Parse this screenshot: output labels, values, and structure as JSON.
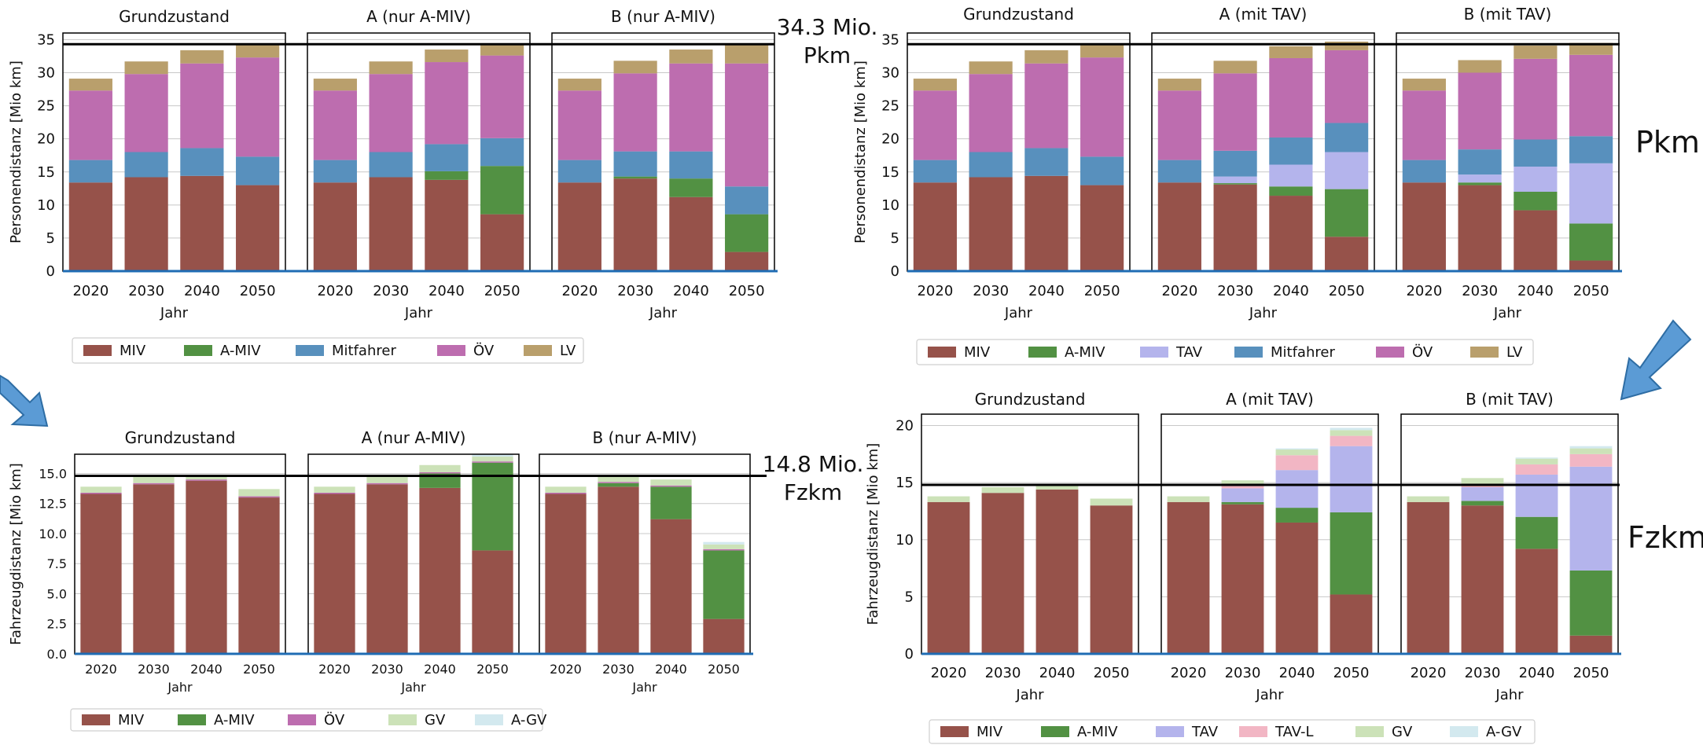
{
  "colors": {
    "MIV": "#96524a",
    "A-MIV": "#529143",
    "Mitfahrer": "#5890bd",
    "ÖV": "#bd6daf",
    "LV": "#b99f6c",
    "TAV": "#b4b4ec",
    "TAV-L": "#f2b6c4",
    "GV": "#cce2b8",
    "A-GV": "#d3e9ef",
    "axis_blue": "#1f6cb4",
    "arrow": "#5b9bd5"
  },
  "annotations": {
    "pkm_ref_line1": "34.3 Mio.",
    "pkm_ref_line2": "Pkm",
    "fzkm_ref_line1": "14.8 Mio.",
    "fzkm_ref_line2": "Fzkm",
    "pkm_side": "Pkm",
    "fzkm_side": "Fzkm"
  },
  "chart_data": [
    {
      "type": "bar",
      "stacked": true,
      "ylabel": "Personendistanz [Mio km]",
      "xlabel": "Jahr",
      "ylim": [
        0,
        36
      ],
      "yticks": [
        0,
        5,
        10,
        15,
        20,
        25,
        30,
        35
      ],
      "reference_line": 34.3,
      "legend": [
        "MIV",
        "A-MIV",
        "Mitfahrer",
        "ÖV",
        "LV"
      ],
      "legend_position": "bottom",
      "categories": [
        "2020",
        "2030",
        "2040",
        "2050"
      ],
      "panels": [
        {
          "title": "Grundzustand",
          "series": [
            {
              "name": "MIV",
              "values": [
                13.4,
                14.2,
                14.4,
                13.0
              ]
            },
            {
              "name": "A-MIV",
              "values": [
                0,
                0,
                0,
                0
              ]
            },
            {
              "name": "Mitfahrer",
              "values": [
                3.4,
                3.8,
                4.2,
                4.3
              ]
            },
            {
              "name": "ÖV",
              "values": [
                10.5,
                11.8,
                12.8,
                15.0
              ]
            },
            {
              "name": "LV",
              "values": [
                1.8,
                1.9,
                2.0,
                2.0
              ]
            }
          ]
        },
        {
          "title": "A (nur A-MIV)",
          "series": [
            {
              "name": "MIV",
              "values": [
                13.4,
                14.2,
                13.8,
                8.6
              ]
            },
            {
              "name": "A-MIV",
              "values": [
                0,
                0,
                1.3,
                7.3
              ]
            },
            {
              "name": "Mitfahrer",
              "values": [
                3.4,
                3.8,
                4.1,
                4.2
              ]
            },
            {
              "name": "ÖV",
              "values": [
                10.5,
                11.8,
                12.4,
                12.5
              ]
            },
            {
              "name": "LV",
              "values": [
                1.8,
                1.9,
                1.9,
                1.8
              ]
            }
          ]
        },
        {
          "title": "B (nur A-MIV)",
          "series": [
            {
              "name": "MIV",
              "values": [
                13.4,
                14.0,
                11.2,
                2.9
              ]
            },
            {
              "name": "A-MIV",
              "values": [
                0,
                0.3,
                2.8,
                5.7
              ]
            },
            {
              "name": "Mitfahrer",
              "values": [
                3.4,
                3.8,
                4.1,
                4.2
              ]
            },
            {
              "name": "ÖV",
              "values": [
                10.5,
                11.8,
                13.3,
                18.6
              ]
            },
            {
              "name": "LV",
              "values": [
                1.8,
                1.9,
                2.1,
                3.0
              ]
            }
          ]
        }
      ]
    },
    {
      "type": "bar",
      "stacked": true,
      "ylabel": "Personendistanz [Mio km]",
      "xlabel": "Jahr",
      "ylim": [
        0,
        36
      ],
      "yticks": [
        0,
        5,
        10,
        15,
        20,
        25,
        30,
        35
      ],
      "reference_line": 34.3,
      "legend": [
        "MIV",
        "A-MIV",
        "TAV",
        "Mitfahrer",
        "ÖV",
        "LV"
      ],
      "legend_position": "bottom",
      "categories": [
        "2020",
        "2030",
        "2040",
        "2050"
      ],
      "panels": [
        {
          "title": "Grundzustand",
          "series": [
            {
              "name": "MIV",
              "values": [
                13.4,
                14.2,
                14.4,
                13.0
              ]
            },
            {
              "name": "A-MIV",
              "values": [
                0,
                0,
                0,
                0
              ]
            },
            {
              "name": "TAV",
              "values": [
                0,
                0,
                0,
                0
              ]
            },
            {
              "name": "Mitfahrer",
              "values": [
                3.4,
                3.8,
                4.2,
                4.3
              ]
            },
            {
              "name": "ÖV",
              "values": [
                10.5,
                11.8,
                12.8,
                15.0
              ]
            },
            {
              "name": "LV",
              "values": [
                1.8,
                1.9,
                2.0,
                2.0
              ]
            }
          ]
        },
        {
          "title": "A (mit TAV)",
          "series": [
            {
              "name": "MIV",
              "values": [
                13.4,
                13.1,
                11.4,
                5.2
              ]
            },
            {
              "name": "A-MIV",
              "values": [
                0,
                0.2,
                1.4,
                7.2
              ]
            },
            {
              "name": "TAV",
              "values": [
                0,
                1.0,
                3.3,
                5.6
              ]
            },
            {
              "name": "Mitfahrer",
              "values": [
                3.4,
                3.9,
                4.1,
                4.4
              ]
            },
            {
              "name": "ÖV",
              "values": [
                10.5,
                11.7,
                12.0,
                11.0
              ]
            },
            {
              "name": "LV",
              "values": [
                1.8,
                1.9,
                1.8,
                1.3
              ]
            }
          ]
        },
        {
          "title": "B (mit TAV)",
          "series": [
            {
              "name": "MIV",
              "values": [
                13.4,
                13.0,
                9.2,
                1.6
              ]
            },
            {
              "name": "A-MIV",
              "values": [
                0,
                0.4,
                2.8,
                5.6
              ]
            },
            {
              "name": "TAV",
              "values": [
                0,
                1.2,
                3.8,
                9.1
              ]
            },
            {
              "name": "Mitfahrer",
              "values": [
                3.4,
                3.8,
                4.1,
                4.1
              ]
            },
            {
              "name": "ÖV",
              "values": [
                10.5,
                11.6,
                12.2,
                12.3
              ]
            },
            {
              "name": "LV",
              "values": [
                1.8,
                1.9,
                2.0,
                1.8
              ]
            }
          ]
        }
      ]
    },
    {
      "type": "bar",
      "stacked": true,
      "ylabel": "Fahrzeugdistanz [Mio km]",
      "xlabel": "Jahr",
      "ylim": [
        0,
        16.6
      ],
      "yticks": [
        0.0,
        2.5,
        5.0,
        7.5,
        10.0,
        12.5,
        15.0
      ],
      "tick_format": "0.0",
      "reference_line": 14.8,
      "legend": [
        "MIV",
        "A-MIV",
        "ÖV",
        "GV",
        "A-GV"
      ],
      "legend_position": "bottom",
      "categories": [
        "2020",
        "2030",
        "2040",
        "2050"
      ],
      "panels": [
        {
          "title": "Grundzustand",
          "series": [
            {
              "name": "MIV",
              "values": [
                13.3,
                14.1,
                14.4,
                13.0
              ]
            },
            {
              "name": "A-MIV",
              "values": [
                0,
                0,
                0,
                0
              ]
            },
            {
              "name": "ÖV",
              "values": [
                0.1,
                0.1,
                0.1,
                0.1
              ]
            },
            {
              "name": "GV",
              "values": [
                0.5,
                0.5,
                0.4,
                0.6
              ]
            },
            {
              "name": "A-GV",
              "values": [
                0,
                0,
                0,
                0
              ]
            }
          ]
        },
        {
          "title": "A (nur A-MIV)",
          "series": [
            {
              "name": "MIV",
              "values": [
                13.3,
                14.1,
                13.8,
                8.6
              ]
            },
            {
              "name": "A-MIV",
              "values": [
                0,
                0,
                1.2,
                7.3
              ]
            },
            {
              "name": "ÖV",
              "values": [
                0.1,
                0.1,
                0.1,
                0.1
              ]
            },
            {
              "name": "GV",
              "values": [
                0.5,
                0.5,
                0.6,
                0.4
              ]
            },
            {
              "name": "A-GV",
              "values": [
                0,
                0,
                0,
                0.2
              ]
            }
          ]
        },
        {
          "title": "B (nur A-MIV)",
          "series": [
            {
              "name": "MIV",
              "values": [
                13.3,
                13.9,
                11.2,
                2.9
              ]
            },
            {
              "name": "A-MIV",
              "values": [
                0,
                0.3,
                2.7,
                5.7
              ]
            },
            {
              "name": "ÖV",
              "values": [
                0.1,
                0.1,
                0.1,
                0.1
              ]
            },
            {
              "name": "GV",
              "values": [
                0.5,
                0.5,
                0.5,
                0.4
              ]
            },
            {
              "name": "A-GV",
              "values": [
                0,
                0,
                0,
                0.2
              ]
            }
          ]
        }
      ]
    },
    {
      "type": "bar",
      "stacked": true,
      "ylabel": "Fahrzeugdistanz [Mio km]",
      "xlabel": "Jahr",
      "ylim": [
        0,
        21
      ],
      "yticks": [
        0,
        5,
        10,
        15,
        20
      ],
      "reference_line": 14.8,
      "legend": [
        "MIV",
        "A-MIV",
        "TAV",
        "TAV-L",
        "GV",
        "A-GV"
      ],
      "legend_position": "bottom",
      "categories": [
        "2020",
        "2030",
        "2040",
        "2050"
      ],
      "panels": [
        {
          "title": "Grundzustand",
          "series": [
            {
              "name": "MIV",
              "values": [
                13.3,
                14.1,
                14.4,
                13.0
              ]
            },
            {
              "name": "A-MIV",
              "values": [
                0,
                0,
                0,
                0
              ]
            },
            {
              "name": "TAV",
              "values": [
                0,
                0,
                0,
                0
              ]
            },
            {
              "name": "TAV-L",
              "values": [
                0,
                0,
                0,
                0
              ]
            },
            {
              "name": "GV",
              "values": [
                0.5,
                0.5,
                0.4,
                0.6
              ]
            },
            {
              "name": "A-GV",
              "values": [
                0,
                0,
                0,
                0
              ]
            }
          ]
        },
        {
          "title": "A (mit TAV)",
          "series": [
            {
              "name": "MIV",
              "values": [
                13.3,
                13.1,
                11.5,
                5.2
              ]
            },
            {
              "name": "A-MIV",
              "values": [
                0,
                0.2,
                1.3,
                7.2
              ]
            },
            {
              "name": "TAV",
              "values": [
                0,
                1.2,
                3.3,
                5.8
              ]
            },
            {
              "name": "TAV-L",
              "values": [
                0,
                0.2,
                1.3,
                0.9
              ]
            },
            {
              "name": "GV",
              "values": [
                0.5,
                0.5,
                0.5,
                0.5
              ]
            },
            {
              "name": "A-GV",
              "values": [
                0,
                0,
                0.1,
                0.2
              ]
            }
          ]
        },
        {
          "title": "B (mit TAV)",
          "series": [
            {
              "name": "MIV",
              "values": [
                13.3,
                13.0,
                9.2,
                1.6
              ]
            },
            {
              "name": "A-MIV",
              "values": [
                0,
                0.4,
                2.8,
                5.7
              ]
            },
            {
              "name": "TAV",
              "values": [
                0,
                1.2,
                3.7,
                9.1
              ]
            },
            {
              "name": "TAV-L",
              "values": [
                0,
                0.2,
                0.9,
                1.1
              ]
            },
            {
              "name": "GV",
              "values": [
                0.5,
                0.6,
                0.5,
                0.5
              ]
            },
            {
              "name": "A-GV",
              "values": [
                0,
                0,
                0.1,
                0.2
              ]
            }
          ]
        }
      ]
    }
  ]
}
